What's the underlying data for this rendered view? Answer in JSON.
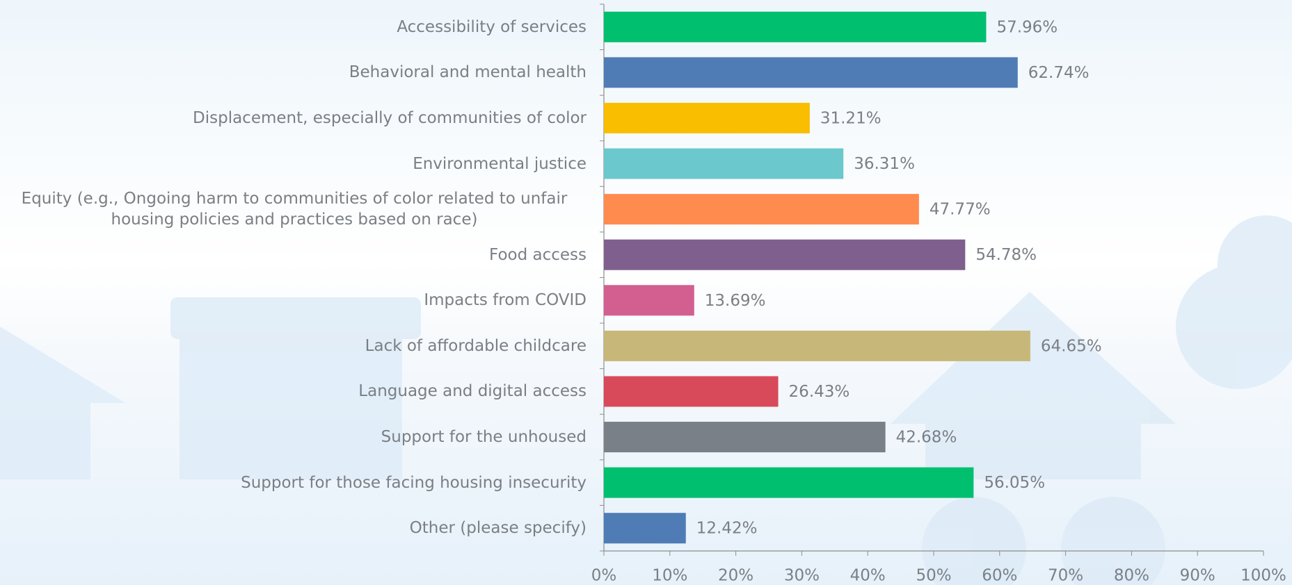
{
  "chart_data": {
    "type": "bar",
    "orientation": "horizontal",
    "categories": [
      "Accessibility of services",
      "Behavioral and mental health",
      "Displacement, especially of communities of color",
      "Environmental justice",
      "Equity (e.g., Ongoing harm to communities of color related to unfair housing policies and practices based on race)",
      "Food access",
      "Impacts from COVID",
      "Lack of affordable childcare",
      "Language and digital access",
      "Support for the unhoused",
      "Support for those facing housing insecurity",
      "Other (please specify)"
    ],
    "values": [
      57.96,
      62.74,
      31.21,
      36.31,
      47.77,
      54.78,
      13.69,
      64.65,
      26.43,
      42.68,
      56.05,
      12.42
    ],
    "value_labels": [
      "57.96%",
      "62.74%",
      "31.21%",
      "36.31%",
      "47.77%",
      "54.78%",
      "13.69%",
      "64.65%",
      "26.43%",
      "42.68%",
      "56.05%",
      "12.42%"
    ],
    "colors": [
      "#00bf6f",
      "#507cb6",
      "#f9be00",
      "#6bc8cd",
      "#ff8b4f",
      "#7f5f8e",
      "#d25f90",
      "#c7b879",
      "#d84a5a",
      "#7a8087",
      "#00bf6f",
      "#507cb6"
    ],
    "xlim": [
      0,
      100
    ],
    "xticks": [
      {
        "value": 0,
        "label": "0%"
      },
      {
        "value": 10,
        "label": "10%"
      },
      {
        "value": 20,
        "label": "20%"
      },
      {
        "value": 30,
        "label": "30%"
      },
      {
        "value": 40,
        "label": "40%"
      },
      {
        "value": 50,
        "label": "50%"
      },
      {
        "value": 60,
        "label": "60%"
      },
      {
        "value": 70,
        "label": "70%"
      },
      {
        "value": 80,
        "label": "80%"
      },
      {
        "value": 90,
        "label": "90%"
      },
      {
        "value": 100,
        "label": "100%"
      }
    ]
  }
}
